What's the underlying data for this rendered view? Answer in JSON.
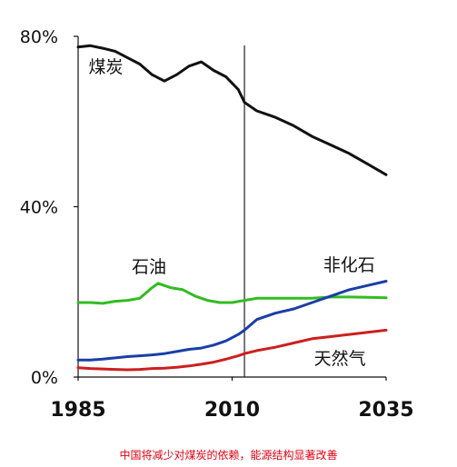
{
  "chart_data": {
    "type": "line",
    "xlim": [
      1985,
      2035
    ],
    "ylim": [
      0,
      80
    ],
    "y_ticks": [
      {
        "value": 80,
        "label": "80%"
      },
      {
        "value": 40,
        "label": "40%"
      },
      {
        "value": 0,
        "label": "0%"
      }
    ],
    "x_ticks": [
      {
        "value": 1985,
        "label": "1985"
      },
      {
        "value": 2010,
        "label": "2010"
      },
      {
        "value": 2035,
        "label": "2035"
      }
    ],
    "divider_x": 2012,
    "grid": false,
    "series": [
      {
        "name": "煤炭",
        "color": "#111111",
        "x": [
          1985,
          1987,
          1989,
          1991,
          1993,
          1995,
          1997,
          1999,
          2001,
          2003,
          2005,
          2007,
          2009,
          2011,
          2012,
          2014,
          2017,
          2020,
          2023,
          2026,
          2029,
          2032,
          2035
        ],
        "y": [
          77.5,
          77.8,
          77.2,
          76.5,
          75.0,
          73.5,
          71.0,
          69.5,
          71.0,
          73.0,
          74.0,
          72.0,
          70.5,
          67.5,
          64.5,
          62.5,
          61.0,
          59.0,
          56.5,
          54.5,
          52.5,
          50.0,
          47.5
        ]
      },
      {
        "name": "石油",
        "color": "#33bb22",
        "x": [
          1985,
          1987,
          1989,
          1991,
          1993,
          1995,
          1997,
          1998,
          2000,
          2002,
          2004,
          2006,
          2008,
          2010,
          2012,
          2014,
          2017,
          2020,
          2023,
          2026,
          2029,
          2032,
          2035
        ],
        "y": [
          17.5,
          17.5,
          17.3,
          17.8,
          18.0,
          18.5,
          21.0,
          22.0,
          21.0,
          20.5,
          19.0,
          18.0,
          17.5,
          17.5,
          18.0,
          18.5,
          18.5,
          18.5,
          18.5,
          18.8,
          18.8,
          18.7,
          18.6
        ]
      },
      {
        "name": "非化石",
        "color": "#1a3ea8",
        "x": [
          1985,
          1987,
          1989,
          1991,
          1993,
          1995,
          1997,
          1999,
          2001,
          2003,
          2005,
          2007,
          2009,
          2011,
          2012,
          2014,
          2017,
          2020,
          2023,
          2026,
          2029,
          2032,
          2035
        ],
        "y": [
          4.0,
          4.0,
          4.2,
          4.5,
          4.8,
          5.0,
          5.2,
          5.5,
          6.0,
          6.5,
          6.8,
          7.5,
          8.5,
          10.0,
          11.0,
          13.5,
          15.0,
          16.0,
          17.5,
          19.0,
          20.5,
          21.5,
          22.5
        ]
      },
      {
        "name": "天然气",
        "color": "#cc1f1f",
        "x": [
          1985,
          1987,
          1989,
          1991,
          1993,
          1995,
          1997,
          1999,
          2001,
          2003,
          2005,
          2007,
          2009,
          2011,
          2012,
          2014,
          2017,
          2020,
          2023,
          2026,
          2029,
          2032,
          2035
        ],
        "y": [
          2.2,
          2.0,
          1.9,
          1.8,
          1.7,
          1.8,
          2.0,
          2.1,
          2.3,
          2.6,
          3.0,
          3.5,
          4.2,
          5.0,
          5.5,
          6.2,
          7.0,
          8.0,
          9.0,
          9.5,
          10.0,
          10.5,
          11.0
        ]
      }
    ],
    "series_labels": [
      {
        "text": "煤炭",
        "x": 1989.5,
        "y": 71.5
      },
      {
        "text": "石油",
        "x": 1996.5,
        "y": 24.5
      },
      {
        "text": "非化石",
        "x": 2029.0,
        "y": 25.0
      },
      {
        "text": "天然气",
        "x": 2027.5,
        "y": 3.0
      }
    ]
  },
  "caption": "中国将减少对煤炭的依赖，能源结构显著改善"
}
